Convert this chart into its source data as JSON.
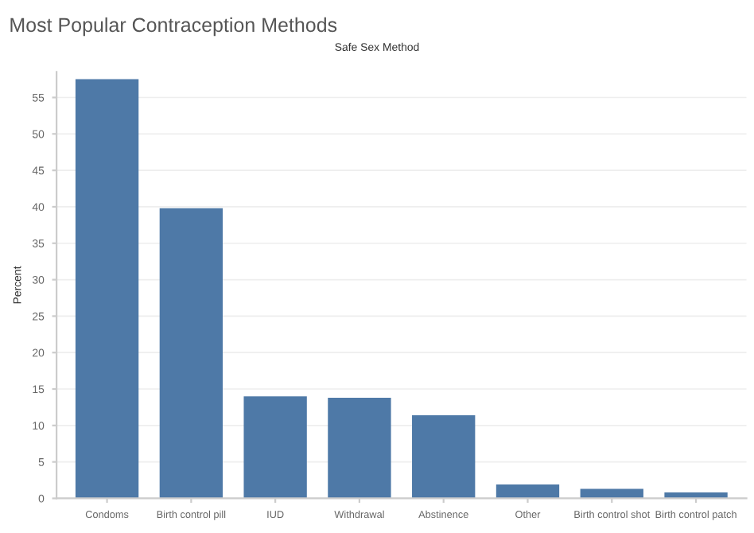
{
  "chart_data": {
    "type": "bar",
    "title": "Most Popular Contraception Methods",
    "subtitle": "Safe Sex Method",
    "ylabel": "Percent",
    "categories": [
      "Condoms",
      "Birth control pill",
      "IUD",
      "Withdrawal",
      "Abstinence",
      "Other",
      "Birth control shot",
      "Birth control patch"
    ],
    "values": [
      57.5,
      39.8,
      14.0,
      13.8,
      11.4,
      1.9,
      1.3,
      0.8
    ],
    "color": "#4e79a7",
    "ylim": [
      0,
      58.5
    ],
    "yticks": [
      0,
      5,
      10,
      15,
      20,
      25,
      30,
      35,
      40,
      45,
      50,
      55
    ],
    "grid": "y"
  }
}
